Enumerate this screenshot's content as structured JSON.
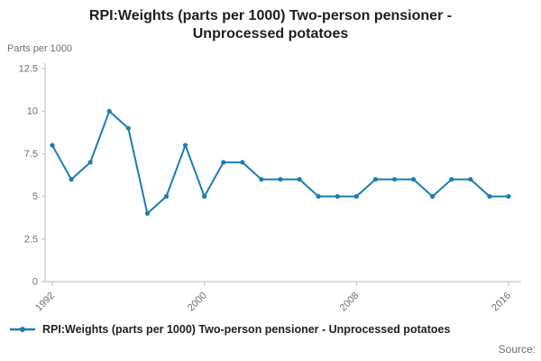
{
  "title_line1": "RPI:Weights (parts per 1000) Two-person pensioner -",
  "title_line2": "Unprocessed potatoes",
  "y_axis_unit": "Parts per 1000",
  "legend_label": "RPI:Weights (parts per 1000) Two-person pensioner - Unprocessed potatoes",
  "source_label": "Source:",
  "colors": {
    "line": "#1a7db4",
    "axis_text": "#6e6e6e",
    "axis_line": "#bdbdbd",
    "title": "#1e1e1e"
  },
  "chart_data": {
    "type": "line",
    "title": "RPI:Weights (parts per 1000) Two-person pensioner - Unprocessed potatoes",
    "xlabel": "",
    "ylabel": "Parts per 1000",
    "x": [
      1992,
      1993,
      1994,
      1995,
      1996,
      1997,
      1998,
      1999,
      2000,
      2001,
      2002,
      2003,
      2004,
      2005,
      2006,
      2007,
      2008,
      2009,
      2010,
      2011,
      2012,
      2013,
      2014,
      2015,
      2016
    ],
    "values": [
      8,
      6,
      7,
      10,
      9,
      4,
      5,
      8,
      5,
      7,
      7,
      6,
      6,
      6,
      5,
      5,
      5,
      6,
      6,
      6,
      5,
      6,
      6,
      5,
      5
    ],
    "x_tick_labels": [
      "1992",
      "2000",
      "2008",
      "2016"
    ],
    "x_tick_years": [
      1992,
      2000,
      2008,
      2016
    ],
    "y_ticks": [
      0,
      2.5,
      5,
      7.5,
      10,
      12.5
    ],
    "y_tick_labels": [
      "0",
      "2.5",
      "5",
      "7.5",
      "10",
      "12.5"
    ],
    "ylim": [
      0,
      12.5
    ],
    "grid": false,
    "legend_position": "bottom-left",
    "marker": "circle"
  }
}
